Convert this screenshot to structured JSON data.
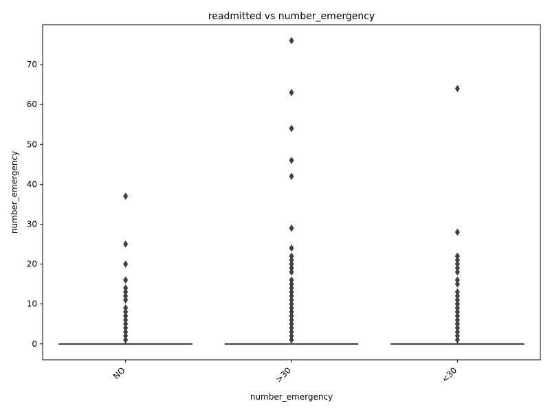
{
  "chart_data": {
    "type": "box",
    "title": "readmitted vs number_emergency",
    "xlabel": "number_emergency",
    "ylabel": "number_emergency",
    "categories": [
      "NO",
      ">30",
      "<30"
    ],
    "ylim": [
      -4,
      80
    ],
    "yticks": [
      0,
      10,
      20,
      30,
      40,
      50,
      60,
      70
    ],
    "grid": false,
    "box_color": "#3f3f3f",
    "series": [
      {
        "category": "NO",
        "whisker_low": 0,
        "q1": 0,
        "median": 0,
        "q3": 0,
        "whisker_high": 0,
        "outliers": [
          1,
          2,
          3,
          4,
          5,
          6,
          7,
          8,
          9,
          11,
          12,
          13,
          14,
          16,
          20,
          25,
          37
        ]
      },
      {
        "category": ">30",
        "whisker_low": 0,
        "q1": 0,
        "median": 0,
        "q3": 0,
        "whisker_high": 0,
        "outliers": [
          1,
          2,
          3,
          4,
          5,
          6,
          7,
          8,
          9,
          10,
          11,
          12,
          13,
          14,
          15,
          16,
          18,
          19,
          20,
          21,
          22,
          24,
          29,
          42,
          46,
          54,
          63,
          76
        ]
      },
      {
        "category": "<30",
        "whisker_low": 0,
        "q1": 0,
        "median": 0,
        "q3": 0,
        "whisker_high": 0,
        "outliers": [
          1,
          2,
          3,
          4,
          5,
          6,
          7,
          8,
          9,
          10,
          11,
          12,
          13,
          15,
          16,
          18,
          19,
          20,
          21,
          22,
          28,
          64
        ]
      }
    ]
  }
}
